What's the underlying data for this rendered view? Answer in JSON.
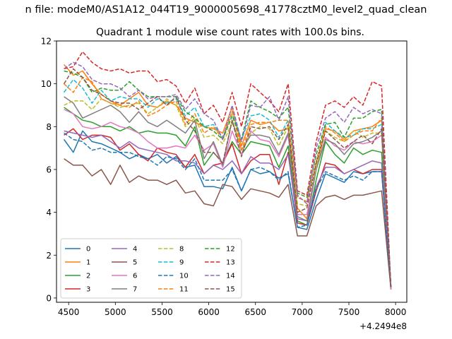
{
  "figure": {
    "suptitle": "n file: modeM0/AS1A12_044T19_9000005698_41778cztM0_level2_quad_clean"
  },
  "chart_data": {
    "type": "line",
    "title": "Quadrant 1 module wise count rates with 100.0s bins.",
    "xlabel": "",
    "ylabel": "",
    "x_offset_label": "+4.2494e8",
    "xlim": [
      4370,
      8120
    ],
    "ylim": [
      -0.2,
      12
    ],
    "x_ticks": [
      4500,
      5000,
      5500,
      6000,
      6500,
      7000,
      7500,
      8000
    ],
    "y_ticks": [
      0,
      2,
      4,
      6,
      8,
      10,
      12
    ],
    "grid": false,
    "legend_position": "lower-left",
    "legend_columns": 4,
    "x": [
      4450,
      4550,
      4650,
      4750,
      4850,
      4950,
      5050,
      5150,
      5250,
      5350,
      5450,
      5550,
      5650,
      5750,
      5850,
      5950,
      6050,
      6150,
      6250,
      6350,
      6450,
      6550,
      6650,
      6750,
      6850,
      6950,
      7050,
      7150,
      7250,
      7350,
      7450,
      7550,
      7650,
      7750,
      7850,
      7950
    ],
    "series": [
      {
        "name": "0",
        "color": "#1f77b4",
        "dash": "solid",
        "values": [
          7.4,
          6.8,
          7.8,
          7.3,
          7.2,
          7.0,
          6.8,
          6.5,
          6.7,
          6.5,
          6.7,
          6.3,
          6.6,
          6.1,
          6.2,
          5.2,
          5.2,
          5.1,
          6.1,
          5.0,
          6.0,
          5.8,
          5.9,
          5.6,
          5.8,
          3.3,
          3.2,
          4.6,
          5.8,
          5.6,
          5.4,
          5.9,
          5.8,
          5.9,
          5.9,
          0.5
        ]
      },
      {
        "name": "1",
        "color": "#ff7f0e",
        "dash": "solid",
        "values": [
          10.9,
          10.4,
          10.6,
          10.0,
          9.5,
          9.2,
          9.0,
          9.3,
          9.6,
          9.0,
          8.9,
          9.2,
          9.0,
          8.4,
          8.2,
          8.0,
          7.9,
          7.7,
          8.9,
          7.1,
          8.3,
          8.1,
          8.2,
          7.8,
          7.9,
          4.2,
          3.7,
          6.0,
          7.9,
          7.8,
          7.4,
          7.8,
          7.9,
          8.0,
          8.3,
          0.5
        ]
      },
      {
        "name": "2",
        "color": "#2ca02c",
        "dash": "solid",
        "values": [
          8.9,
          8.6,
          8.3,
          8.2,
          8.0,
          8.0,
          7.8,
          8.0,
          7.7,
          7.8,
          7.7,
          7.7,
          7.6,
          7.1,
          8.0,
          6.2,
          6.8,
          6.3,
          7.3,
          6.7,
          7.3,
          7.2,
          7.1,
          6.1,
          7.1,
          3.6,
          3.4,
          5.5,
          7.3,
          6.7,
          6.3,
          7.0,
          6.7,
          6.9,
          6.8,
          0.5
        ]
      },
      {
        "name": "3",
        "color": "#d62728",
        "dash": "solid",
        "values": [
          7.6,
          7.9,
          7.4,
          7.6,
          7.6,
          7.5,
          6.9,
          7.2,
          6.7,
          6.4,
          7.0,
          6.8,
          6.7,
          6.1,
          6.7,
          5.8,
          6.2,
          6.3,
          7.2,
          5.8,
          6.4,
          6.7,
          6.7,
          5.3,
          6.8,
          3.5,
          3.4,
          5.0,
          6.3,
          6.2,
          5.8,
          6.0,
          5.8,
          6.0,
          6.0,
          0.4
        ]
      },
      {
        "name": "4",
        "color": "#9467bd",
        "dash": "solid",
        "values": [
          7.8,
          7.7,
          7.6,
          7.5,
          7.6,
          7.3,
          7.0,
          7.3,
          7.0,
          6.9,
          6.8,
          6.7,
          6.4,
          6.4,
          6.3,
          5.8,
          6.2,
          6.0,
          6.4,
          5.8,
          6.6,
          6.3,
          6.3,
          6.0,
          6.7,
          3.7,
          3.6,
          5.2,
          6.1,
          6.1,
          5.8,
          6.0,
          6.2,
          6.4,
          6.3,
          0.4
        ]
      },
      {
        "name": "5",
        "color": "#8c564b",
        "dash": "solid",
        "values": [
          6.5,
          6.2,
          6.2,
          5.7,
          6.0,
          5.3,
          6.2,
          5.4,
          5.7,
          5.5,
          5.5,
          5.3,
          5.5,
          4.9,
          5.0,
          4.4,
          4.3,
          5.3,
          5.2,
          4.6,
          5.1,
          5.0,
          4.9,
          4.7,
          5.3,
          2.9,
          2.9,
          4.3,
          4.7,
          4.8,
          4.6,
          4.8,
          4.8,
          4.9,
          5.0,
          0.4
        ]
      },
      {
        "name": "6",
        "color": "#e377c2",
        "dash": "solid",
        "values": [
          8.8,
          8.6,
          8.0,
          7.9,
          8.0,
          8.2,
          8.0,
          7.9,
          7.7,
          7.3,
          7.0,
          7.0,
          7.1,
          7.0,
          7.6,
          6.9,
          7.2,
          6.1,
          7.8,
          6.7,
          7.8,
          7.4,
          7.3,
          6.6,
          7.6,
          3.9,
          3.9,
          6.0,
          7.5,
          7.1,
          6.9,
          7.3,
          7.2,
          7.3,
          7.6,
          0.4
        ]
      },
      {
        "name": "7",
        "color": "#7f7f7f",
        "dash": "solid",
        "values": [
          9.4,
          9.1,
          8.4,
          8.6,
          8.8,
          9.0,
          8.7,
          8.2,
          8.7,
          8.2,
          8.0,
          8.3,
          8.0,
          7.7,
          8.3,
          6.5,
          7.3,
          6.2,
          8.3,
          6.9,
          7.6,
          7.6,
          7.5,
          6.7,
          7.7,
          3.8,
          3.6,
          6.0,
          7.4,
          7.2,
          6.7,
          7.2,
          7.3,
          7.5,
          7.8,
          0.5
        ]
      },
      {
        "name": "8",
        "color": "#bcbd22",
        "dash": "dashed",
        "values": [
          9.0,
          9.2,
          9.2,
          8.8,
          9.3,
          9.1,
          8.9,
          9.0,
          9.1,
          8.6,
          8.9,
          9.3,
          9.0,
          8.0,
          8.4,
          7.5,
          7.6,
          7.2,
          8.2,
          6.9,
          7.7,
          8.0,
          7.9,
          7.1,
          8.0,
          4.4,
          4.3,
          6.1,
          7.8,
          7.5,
          7.3,
          7.8,
          7.5,
          7.7,
          7.7,
          0.5
        ]
      },
      {
        "name": "9",
        "color": "#17becf",
        "dash": "dashed",
        "values": [
          9.6,
          10.2,
          9.8,
          9.1,
          9.7,
          9.2,
          9.4,
          9.3,
          9.3,
          8.9,
          9.3,
          9.1,
          9.3,
          8.5,
          8.9,
          8.0,
          8.1,
          7.5,
          8.7,
          7.4,
          8.5,
          8.6,
          8.3,
          7.5,
          8.3,
          4.7,
          4.5,
          6.3,
          8.2,
          7.8,
          7.5,
          7.6,
          7.9,
          7.9,
          8.1,
          0.5
        ]
      },
      {
        "name": "10",
        "color": "#1f77b4",
        "dash": "dashed",
        "values": [
          7.7,
          7.4,
          7.3,
          6.9,
          7.0,
          6.8,
          6.8,
          6.8,
          6.6,
          6.5,
          6.2,
          6.6,
          6.5,
          6.0,
          6.5,
          5.5,
          5.5,
          5.5,
          6.0,
          5.0,
          6.0,
          6.1,
          5.9,
          5.5,
          5.9,
          3.3,
          3.4,
          5.1,
          5.9,
          5.7,
          5.5,
          5.7,
          5.5,
          5.9,
          5.9,
          0.5
        ]
      },
      {
        "name": "11",
        "color": "#ff7f0e",
        "dash": "dashed",
        "values": [
          10.0,
          9.6,
          10.3,
          10.1,
          9.3,
          9.1,
          9.0,
          8.9,
          9.2,
          8.5,
          8.7,
          9.0,
          9.2,
          8.1,
          8.6,
          7.7,
          8.0,
          7.4,
          8.7,
          6.9,
          8.1,
          8.2,
          8.2,
          8.3,
          8.3,
          4.7,
          4.5,
          6.4,
          8.0,
          7.7,
          7.3,
          7.6,
          7.8,
          7.8,
          8.4,
          0.5
        ]
      },
      {
        "name": "12",
        "color": "#2ca02c",
        "dash": "dashed",
        "values": [
          10.6,
          10.5,
          10.3,
          9.6,
          9.8,
          9.7,
          9.7,
          10.1,
          9.7,
          9.4,
          9.4,
          9.4,
          9.4,
          8.7,
          8.4,
          8.0,
          7.8,
          7.4,
          8.5,
          7.4,
          9.2,
          8.9,
          8.7,
          8.4,
          8.9,
          4.9,
          4.7,
          6.7,
          8.1,
          8.2,
          7.5,
          8.4,
          8.4,
          8.7,
          8.8,
          0.5
        ]
      },
      {
        "name": "13",
        "color": "#d62728",
        "dash": "dashed",
        "values": [
          10.7,
          10.8,
          11.5,
          11.0,
          10.7,
          10.6,
          10.7,
          10.5,
          10.6,
          10.6,
          10.1,
          10.2,
          9.9,
          9.1,
          9.8,
          8.6,
          9.0,
          8.2,
          9.6,
          8.0,
          10.0,
          9.6,
          9.2,
          8.7,
          10.0,
          5.0,
          4.8,
          7.3,
          9.0,
          9.2,
          8.9,
          9.4,
          9.0,
          10.1,
          9.9,
          0.5
        ]
      },
      {
        "name": "14",
        "color": "#9467bd",
        "dash": "dashed",
        "values": [
          10.7,
          11.0,
          10.8,
          10.2,
          10.0,
          10.0,
          9.8,
          9.4,
          9.7,
          9.3,
          9.4,
          9.4,
          9.5,
          8.8,
          9.3,
          8.6,
          8.3,
          7.4,
          9.0,
          7.3,
          9.0,
          8.9,
          9.4,
          8.3,
          9.4,
          4.8,
          4.4,
          7.0,
          8.4,
          8.7,
          8.2,
          8.9,
          8.6,
          8.8,
          8.6,
          0.5
        ]
      },
      {
        "name": "15",
        "color": "#8c564b",
        "dash": "dashed",
        "values": [
          10.0,
          10.7,
          10.3,
          9.7,
          9.5,
          9.2,
          9.1,
          9.1,
          8.8,
          9.1,
          9.4,
          9.0,
          9.4,
          8.3,
          7.8,
          6.8,
          6.8,
          6.3,
          8.3,
          6.6,
          8.0,
          7.9,
          8.0,
          7.4,
          8.1,
          4.0,
          4.2,
          6.3,
          7.8,
          7.4,
          7.0,
          7.3,
          7.6,
          7.2,
          7.9,
          0.5
        ]
      }
    ]
  }
}
